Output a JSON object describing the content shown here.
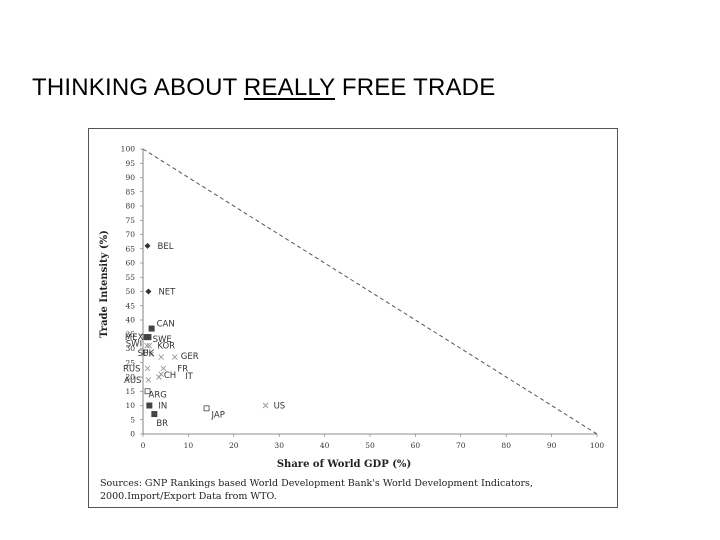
{
  "slide": {
    "title_before": "THINKING ABOUT ",
    "title_emphasis": "REALLY",
    "title_after": " FREE TRADE"
  },
  "chart_data": {
    "type": "scatter",
    "title": "",
    "xlabel": "Share of World GDP (%)",
    "ylabel": "Trade Intensity (%)",
    "xlim": [
      0,
      100
    ],
    "ylim": [
      0,
      100
    ],
    "xticks": [
      0,
      10,
      20,
      30,
      40,
      50,
      60,
      70,
      80,
      90,
      100
    ],
    "yticks": [
      0,
      5,
      10,
      15,
      20,
      25,
      30,
      35,
      40,
      45,
      50,
      55,
      60,
      65,
      70,
      75,
      80,
      85,
      90,
      95,
      100
    ],
    "grid": false,
    "reference_line": {
      "from": [
        0,
        100
      ],
      "to": [
        100,
        0
      ],
      "style": "dashed"
    },
    "points": [
      {
        "label": "BEL",
        "x": 1.0,
        "y": 66,
        "marker": "diamond"
      },
      {
        "label": "NET",
        "x": 1.2,
        "y": 50,
        "marker": "diamond"
      },
      {
        "label": "CAN",
        "x": 1.9,
        "y": 37,
        "marker": "square-filled"
      },
      {
        "label": "MEX",
        "x": 1.2,
        "y": 34,
        "marker": "square-filled"
      },
      {
        "label": "SWE",
        "x": 0.8,
        "y": 34,
        "marker": "square-filled"
      },
      {
        "label": "SWI",
        "x": 0.9,
        "y": 31,
        "marker": "x"
      },
      {
        "label": "KOR",
        "x": 1.4,
        "y": 31,
        "marker": "x"
      },
      {
        "label": "SP",
        "x": 1.8,
        "y": 28,
        "marker": "x"
      },
      {
        "label": "UK",
        "x": 4.0,
        "y": 27,
        "marker": "x"
      },
      {
        "label": "GER",
        "x": 7.0,
        "y": 27,
        "marker": "x"
      },
      {
        "label": "RUS",
        "x": 1.0,
        "y": 23,
        "marker": "x"
      },
      {
        "label": "FR",
        "x": 4.5,
        "y": 23,
        "marker": "x"
      },
      {
        "label": "AUS",
        "x": 1.2,
        "y": 19,
        "marker": "x"
      },
      {
        "label": "CH",
        "x": 3.5,
        "y": 20,
        "marker": "x"
      },
      {
        "label": "IT",
        "x": 4.0,
        "y": 21,
        "marker": "x"
      },
      {
        "label": "ARG",
        "x": 1.0,
        "y": 15,
        "marker": "square-open"
      },
      {
        "label": "IN",
        "x": 1.4,
        "y": 10,
        "marker": "square-filled"
      },
      {
        "label": "BR",
        "x": 2.5,
        "y": 7,
        "marker": "square-filled"
      },
      {
        "label": "JAP",
        "x": 14.0,
        "y": 9,
        "marker": "square-open"
      },
      {
        "label": "US",
        "x": 27.0,
        "y": 10,
        "marker": "x"
      }
    ]
  },
  "source": {
    "line1": "Sources: GNP Rankings based World Development Bank's World Development Indicators,",
    "line2": "2000.Import/Export Data from WTO."
  }
}
